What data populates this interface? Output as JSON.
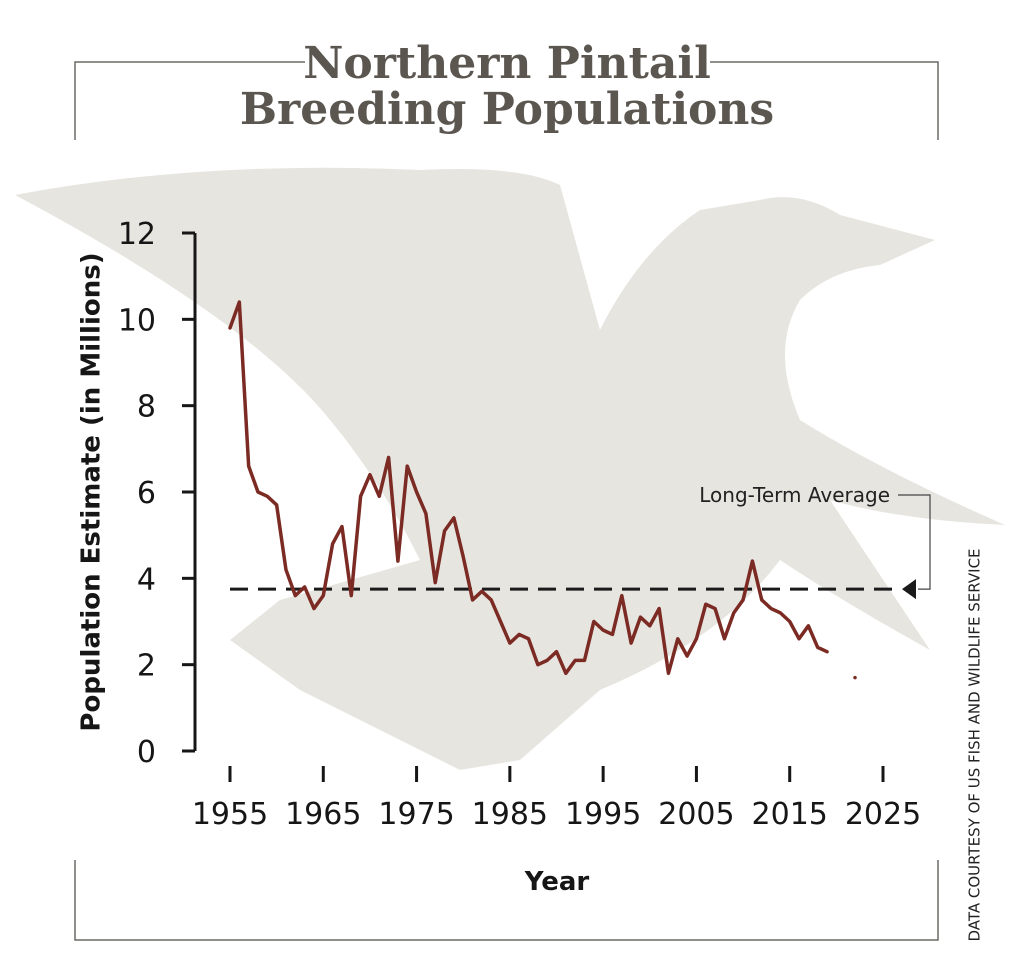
{
  "chart_data": {
    "type": "line",
    "title_lines": [
      "Northern Pintail",
      "Breeding Populations"
    ],
    "y_label": "Population Estimate (in Millions)",
    "x_label": "Year",
    "credit": "DATA COURTESY OF US FISH AND WILDLIFE SERVICE",
    "xlim": [
      1955,
      2025
    ],
    "xticks": [
      1955,
      1965,
      1975,
      1985,
      1995,
      2005,
      2015,
      2025
    ],
    "ylim": [
      0,
      12
    ],
    "yticks": [
      0,
      2,
      4,
      6,
      8,
      10,
      12
    ],
    "x": [
      1955,
      1956,
      1957,
      1958,
      1959,
      1960,
      1961,
      1962,
      1963,
      1964,
      1965,
      1966,
      1967,
      1968,
      1969,
      1970,
      1971,
      1972,
      1973,
      1974,
      1975,
      1976,
      1977,
      1978,
      1979,
      1980,
      1981,
      1982,
      1983,
      1984,
      1985,
      1986,
      1987,
      1988,
      1989,
      1990,
      1991,
      1992,
      1993,
      1994,
      1995,
      1996,
      1997,
      1998,
      1999,
      2000,
      2001,
      2002,
      2003,
      2004,
      2005,
      2006,
      2007,
      2008,
      2009,
      2010,
      2011,
      2012,
      2013,
      2014,
      2015,
      2016,
      2017,
      2018,
      2019,
      2020,
      2021,
      2022
    ],
    "series": [
      {
        "name": "Population Estimate",
        "color": "#7b2b23",
        "values": [
          9.8,
          10.4,
          6.6,
          6.0,
          5.9,
          5.7,
          4.2,
          3.6,
          3.8,
          3.3,
          3.6,
          4.8,
          5.2,
          3.6,
          5.9,
          6.4,
          5.9,
          6.8,
          4.4,
          6.6,
          6.0,
          5.5,
          3.9,
          5.1,
          5.4,
          4.5,
          3.5,
          3.7,
          3.5,
          3.0,
          2.5,
          2.7,
          2.6,
          2.0,
          2.1,
          2.3,
          1.8,
          2.1,
          2.1,
          3.0,
          2.8,
          2.7,
          3.6,
          2.5,
          3.1,
          2.9,
          3.3,
          1.8,
          2.6,
          2.2,
          2.6,
          3.4,
          3.3,
          2.6,
          3.2,
          3.5,
          4.4,
          3.5,
          3.3,
          3.2,
          3.0,
          2.6,
          2.9,
          2.4,
          2.3,
          null,
          null,
          1.7
        ]
      }
    ],
    "average": {
      "label": "Long-Term Average",
      "value": 3.75,
      "color": "#1a1a1a"
    }
  }
}
